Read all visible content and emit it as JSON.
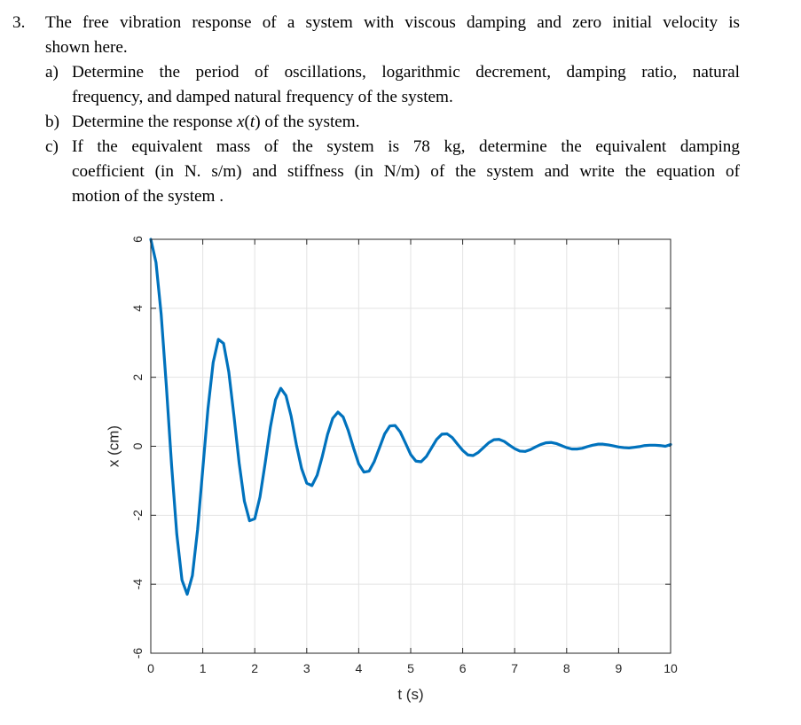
{
  "problem": {
    "number": "3.",
    "intro_line1": "The free vibration response of a system with viscous damping and zero initial velocity is",
    "intro_line2": "shown here.",
    "parts": [
      {
        "label": "a)",
        "line1": "Determine the period of oscillations, logarithmic decrement, damping ratio, natural",
        "line2": "frequency, and damped natural frequency of the system."
      },
      {
        "label": "b)",
        "line1_before": "Determine the response ",
        "math": "x",
        "math_paren": "(t)",
        "line1_after": " of the system."
      },
      {
        "label": "c)",
        "line1": "If the equivalent mass of the system is 78 kg, determine the equivalent damping",
        "line2": "coefficient (in N. s/m) and stiffness (in N/m) of the system and write the equation of",
        "line3": "motion of the system ."
      }
    ]
  },
  "chart_data": {
    "type": "line",
    "title": "",
    "xlabel": "t (s)",
    "ylabel": "x (cm)",
    "xlim": [
      0,
      10
    ],
    "ylim": [
      -6,
      6
    ],
    "xticks": [
      "0",
      "1",
      "2",
      "3",
      "4",
      "5",
      "6",
      "7",
      "8",
      "9",
      "10"
    ],
    "yticks": [
      "-6",
      "-4",
      "-2",
      "0",
      "2",
      "4",
      "6"
    ],
    "grid": true,
    "line_color": "#0072BD",
    "series": [
      {
        "x": [
          0,
          0.1,
          0.2,
          0.3,
          0.4,
          0.5,
          0.6,
          0.7,
          0.8,
          0.9,
          1.0,
          1.1,
          1.2,
          1.3,
          1.4,
          1.5,
          1.6,
          1.7,
          1.8,
          1.9,
          2.0,
          2.1,
          2.2,
          2.3,
          2.4,
          2.5,
          2.6,
          2.7,
          2.8,
          2.9,
          3.0,
          3.1,
          3.2,
          3.3,
          3.4,
          3.5,
          3.6,
          3.7,
          3.8,
          3.9,
          4.0,
          4.1,
          4.2,
          4.3,
          4.4,
          4.5,
          4.6,
          4.7,
          4.8,
          4.9,
          5.0,
          5.1,
          5.2,
          5.3,
          5.4,
          5.5,
          5.6,
          5.7,
          5.8,
          5.9,
          6.0,
          6.1,
          6.2,
          6.3,
          6.4,
          6.5,
          6.6,
          6.7,
          6.8,
          6.9,
          7.0,
          7.1,
          7.2,
          7.3,
          7.4,
          7.5,
          7.6,
          7.7,
          7.8,
          7.9,
          8.0,
          8.1,
          8.2,
          8.3,
          8.4,
          8.5,
          8.6,
          8.7,
          8.8,
          8.9,
          9.0,
          9.1,
          9.2,
          9.3,
          9.4,
          9.5,
          9.6,
          9.7,
          9.8,
          9.9,
          10.0
        ],
        "y": [
          6.0,
          5.33,
          3.82,
          1.73,
          -0.55,
          -2.55,
          -3.88,
          -4.29,
          -3.75,
          -2.42,
          -0.66,
          1.09,
          2.43,
          3.1,
          2.98,
          2.16,
          0.88,
          -0.49,
          -1.59,
          -2.16,
          -2.1,
          -1.47,
          -0.49,
          0.55,
          1.35,
          1.68,
          1.47,
          0.87,
          0.05,
          -0.64,
          -1.07,
          -1.14,
          -0.84,
          -0.29,
          0.34,
          0.81,
          0.99,
          0.85,
          0.45,
          -0.05,
          -0.51,
          -0.75,
          -0.72,
          -0.44,
          -0.04,
          0.36,
          0.59,
          0.6,
          0.41,
          0.09,
          -0.24,
          -0.43,
          -0.45,
          -0.3,
          -0.05,
          0.2,
          0.35,
          0.36,
          0.25,
          0.06,
          -0.12,
          -0.25,
          -0.27,
          -0.18,
          -0.04,
          0.1,
          0.19,
          0.2,
          0.14,
          0.03,
          -0.07,
          -0.14,
          -0.15,
          -0.1,
          -0.02,
          0.05,
          0.1,
          0.11,
          0.08,
          0.02,
          -0.04,
          -0.08,
          -0.08,
          -0.06,
          -0.01,
          0.03,
          0.06,
          0.06,
          0.04,
          0.01,
          -0.02,
          -0.04,
          -0.05,
          -0.03,
          -0.01,
          0.02,
          0.03,
          0.03,
          0.02,
          0.0,
          0.05
        ]
      }
    ]
  }
}
